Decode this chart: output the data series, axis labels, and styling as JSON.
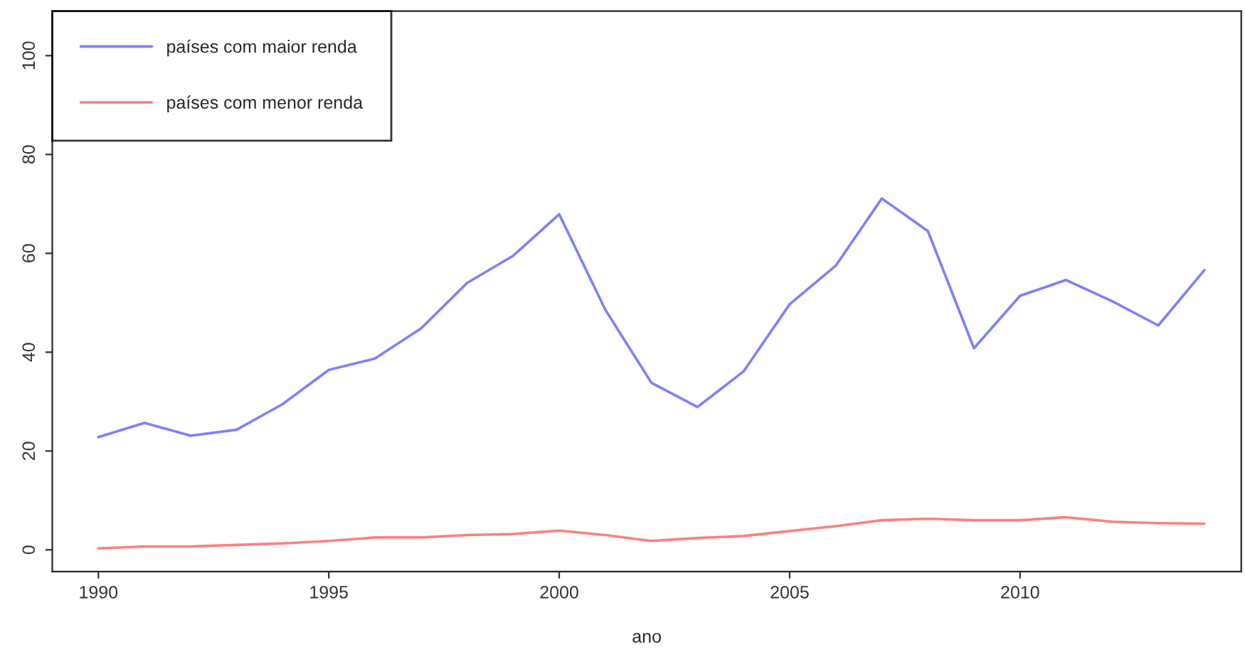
{
  "chart_data": {
    "type": "line",
    "xlabel": "ano",
    "x": [
      1990,
      1991,
      1992,
      1993,
      1994,
      1995,
      1996,
      1997,
      1998,
      1999,
      2000,
      2001,
      2002,
      2003,
      2004,
      2005,
      2006,
      2007,
      2008,
      2009,
      2010,
      2011,
      2012,
      2013,
      2014
    ],
    "series": [
      {
        "name": "países com maior renda",
        "color": "#7f7fff",
        "values": [
          22.8,
          25.7,
          23.1,
          24.3,
          29.5,
          36.4,
          38.7,
          44.8,
          54,
          59.5,
          67.9,
          48.6,
          33.8,
          28.9,
          36.1,
          49.7,
          57.5,
          71.1,
          64.5,
          40.8,
          51.4,
          54.6,
          50.3,
          45.4,
          56.6
        ]
      },
      {
        "name": "países com menor renda",
        "color": "#ff7f7f",
        "values": [
          0.3,
          0.7,
          0.7,
          1,
          1.3,
          1.8,
          2.5,
          2.5,
          3,
          3.2,
          3.9,
          3,
          1.8,
          2.4,
          2.8,
          3.8,
          4.8,
          6,
          6.3,
          6,
          6,
          6.6,
          5.7,
          5.4,
          5.3
        ]
      }
    ],
    "xlim": [
      1989,
      2014.8
    ],
    "ylim": [
      -4.4,
      109
    ],
    "xticks": [
      1990,
      1995,
      2000,
      2005,
      2010
    ],
    "yticks": [
      0,
      20,
      40,
      60,
      80,
      100
    ],
    "legend": "top left",
    "grid": false
  }
}
